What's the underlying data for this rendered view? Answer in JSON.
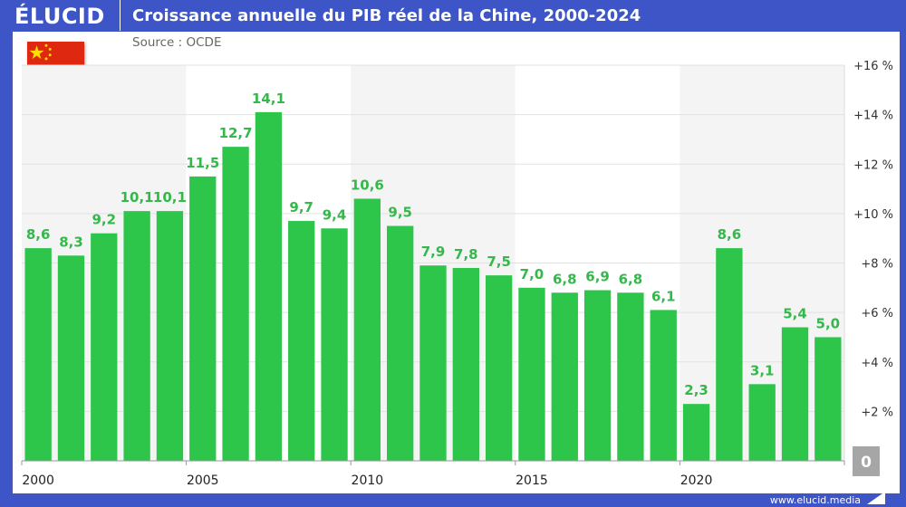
{
  "header": {
    "logo": "ÉLUCID",
    "title": "Croissance annuelle du PIB réel de la Chine, 2000-2024"
  },
  "source": "Source : OCDE",
  "footer": {
    "url": "www.elucid.media"
  },
  "colors": {
    "frame": "#3d55c6",
    "bar": "#2dc54a",
    "label": "#35b84b",
    "band": "#f4f4f4"
  },
  "flag": "china-flag",
  "chart_data": {
    "type": "bar",
    "title": "Croissance annuelle du PIB réel de la Chine, 2000-2024",
    "categories": [
      2000,
      2001,
      2002,
      2003,
      2004,
      2005,
      2006,
      2007,
      2008,
      2009,
      2010,
      2011,
      2012,
      2013,
      2014,
      2015,
      2016,
      2017,
      2018,
      2019,
      2020,
      2021,
      2022,
      2023,
      2024
    ],
    "values": [
      8.6,
      8.3,
      9.2,
      10.1,
      10.1,
      11.5,
      12.7,
      14.1,
      9.7,
      9.4,
      10.6,
      9.5,
      7.9,
      7.8,
      7.5,
      7.0,
      6.8,
      6.9,
      6.8,
      6.1,
      2.3,
      8.6,
      3.1,
      5.4,
      5.0
    ],
    "data_labels": [
      "8,6",
      "8,3",
      "9,2",
      "10,1",
      "10,1",
      "11,5",
      "12,7",
      "14,1",
      "9,7",
      "9,4",
      "10,6",
      "9,5",
      "7,9",
      "7,8",
      "7,5",
      "7,0",
      "6,8",
      "6,9",
      "6,8",
      "6,1",
      "2,3",
      "8,6",
      "3,1",
      "5,4",
      "5,0"
    ],
    "x_tick_labels": [
      "2000",
      "2005",
      "2010",
      "2015",
      "2020"
    ],
    "y_tick_labels": [
      "+2 %",
      "+4 %",
      "+6 %",
      "+8 %",
      "+10 %",
      "+12 %",
      "+14 %",
      "+16 %"
    ],
    "zero_label": "0",
    "ylim": [
      0,
      16
    ],
    "y_axis_position": "right",
    "grid": true
  }
}
